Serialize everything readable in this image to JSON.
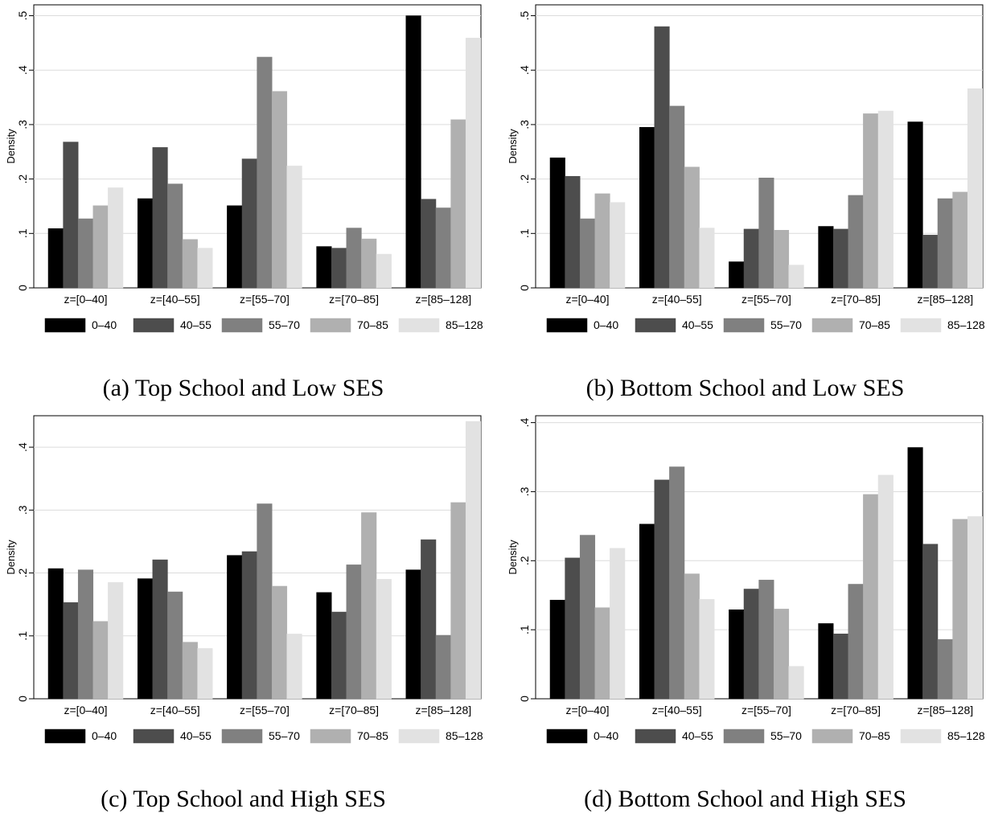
{
  "colors": [
    "#000000",
    "#4d4d4d",
    "#808080",
    "#b0b0b0",
    "#e2e2e2"
  ],
  "chart_data": [
    {
      "type": "bar",
      "caption": "(a) Top School and Low SES",
      "ylabel": "Density",
      "ylim": [
        0,
        0.52
      ],
      "yticks": [
        0,
        0.1,
        0.2,
        0.3,
        0.4,
        0.5
      ],
      "ytick_labels": [
        "0",
        ".1",
        ".2",
        ".3",
        ".4",
        ".5"
      ],
      "grid": true,
      "legend_position": "bottom",
      "categories": [
        "z=[0–40]",
        "z=[40–55]",
        "z=[55–70]",
        "z=[70–85]",
        "z=[85–128]"
      ],
      "series": [
        {
          "name": "0–40",
          "values": [
            0.109,
            0.164,
            0.151,
            0.076,
            0.5
          ]
        },
        {
          "name": "40–55",
          "values": [
            0.268,
            0.258,
            0.237,
            0.073,
            0.163
          ]
        },
        {
          "name": "55–70",
          "values": [
            0.127,
            0.191,
            0.424,
            0.11,
            0.147
          ]
        },
        {
          "name": "70–85",
          "values": [
            0.151,
            0.089,
            0.361,
            0.09,
            0.309
          ]
        },
        {
          "name": "85–128",
          "values": [
            0.184,
            0.073,
            0.224,
            0.062,
            0.459
          ]
        }
      ]
    },
    {
      "type": "bar",
      "caption": "(b) Bottom School and Low SES",
      "ylabel": "Density",
      "ylim": [
        0,
        0.52
      ],
      "yticks": [
        0,
        0.1,
        0.2,
        0.3,
        0.4,
        0.5
      ],
      "ytick_labels": [
        "0",
        ".1",
        ".2",
        ".3",
        ".4",
        ".5"
      ],
      "grid": true,
      "legend_position": "bottom",
      "categories": [
        "z=[0–40]",
        "z=[40–55]",
        "z=[55–70]",
        "z=[70–85]",
        "z=[85–128]"
      ],
      "series": [
        {
          "name": "0–40",
          "values": [
            0.239,
            0.295,
            0.048,
            0.113,
            0.305
          ]
        },
        {
          "name": "40–55",
          "values": [
            0.205,
            0.48,
            0.108,
            0.108,
            0.097
          ]
        },
        {
          "name": "55–70",
          "values": [
            0.127,
            0.334,
            0.202,
            0.17,
            0.164
          ]
        },
        {
          "name": "70–85",
          "values": [
            0.173,
            0.222,
            0.106,
            0.32,
            0.176
          ]
        },
        {
          "name": "85–128",
          "values": [
            0.157,
            0.11,
            0.042,
            0.325,
            0.366
          ]
        }
      ]
    },
    {
      "type": "bar",
      "caption": "(c) Top School and High SES",
      "ylabel": "Density",
      "ylim": [
        0,
        0.45
      ],
      "yticks": [
        0,
        0.1,
        0.2,
        0.3,
        0.4
      ],
      "ytick_labels": [
        "0",
        ".1",
        ".2",
        ".3",
        ".4"
      ],
      "grid": true,
      "legend_position": "bottom",
      "categories": [
        "z=[0–40]",
        "z=[40–55]",
        "z=[55–70]",
        "z=[70–85]",
        "z=[85–128]"
      ],
      "series": [
        {
          "name": "0–40",
          "values": [
            0.207,
            0.191,
            0.228,
            0.169,
            0.205
          ]
        },
        {
          "name": "40–55",
          "values": [
            0.153,
            0.221,
            0.234,
            0.138,
            0.253
          ]
        },
        {
          "name": "55–70",
          "values": [
            0.205,
            0.17,
            0.31,
            0.213,
            0.101
          ]
        },
        {
          "name": "70–85",
          "values": [
            0.123,
            0.09,
            0.179,
            0.296,
            0.312
          ]
        },
        {
          "name": "85–128",
          "values": [
            0.185,
            0.08,
            0.103,
            0.19,
            0.441
          ]
        }
      ]
    },
    {
      "type": "bar",
      "caption": "(d) Bottom School and High SES",
      "ylabel": "Density",
      "ylim": [
        0,
        0.41
      ],
      "yticks": [
        0,
        0.1,
        0.2,
        0.3,
        0.4
      ],
      "ytick_labels": [
        "0",
        ".1",
        ".2",
        ".3",
        ".4"
      ],
      "grid": true,
      "legend_position": "bottom",
      "categories": [
        "z=[0–40]",
        "z=[40–55]",
        "z=[55–70]",
        "z=[70–85]",
        "z=[85–128]"
      ],
      "series": [
        {
          "name": "0–40",
          "values": [
            0.143,
            0.253,
            0.129,
            0.109,
            0.364
          ]
        },
        {
          "name": "40–55",
          "values": [
            0.204,
            0.317,
            0.159,
            0.094,
            0.224
          ]
        },
        {
          "name": "55–70",
          "values": [
            0.237,
            0.336,
            0.172,
            0.166,
            0.086
          ]
        },
        {
          "name": "70–85",
          "values": [
            0.132,
            0.181,
            0.13,
            0.296,
            0.26
          ]
        },
        {
          "name": "85–128",
          "values": [
            0.218,
            0.144,
            0.047,
            0.324,
            0.264
          ]
        }
      ]
    }
  ]
}
